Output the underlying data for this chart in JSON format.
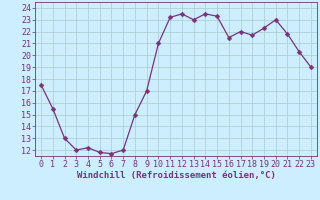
{
  "x": [
    0,
    1,
    2,
    3,
    4,
    5,
    6,
    7,
    8,
    9,
    10,
    11,
    12,
    13,
    14,
    15,
    16,
    17,
    18,
    19,
    20,
    21,
    22,
    23
  ],
  "y": [
    17.5,
    15.5,
    13.0,
    12.0,
    12.2,
    11.8,
    11.7,
    12.0,
    15.0,
    17.0,
    21.0,
    23.2,
    23.5,
    23.0,
    23.5,
    23.3,
    21.5,
    22.0,
    21.7,
    22.3,
    23.0,
    21.8,
    20.3,
    19.0
  ],
  "line_color": "#7a337a",
  "marker": "D",
  "marker_size": 2.5,
  "bg_color": "#cceeff",
  "grid_color": "#aacccc",
  "xlabel": "Windchill (Refroidissement éolien,°C)",
  "xlim": [
    -0.5,
    23.5
  ],
  "ylim": [
    11.5,
    24.5
  ],
  "yticks": [
    12,
    13,
    14,
    15,
    16,
    17,
    18,
    19,
    20,
    21,
    22,
    23,
    24
  ],
  "xticks": [
    0,
    1,
    2,
    3,
    4,
    5,
    6,
    7,
    8,
    9,
    10,
    11,
    12,
    13,
    14,
    15,
    16,
    17,
    18,
    19,
    20,
    21,
    22,
    23
  ],
  "tick_color": "#7a337a",
  "label_fontsize": 6.5,
  "tick_fontsize": 6.0
}
